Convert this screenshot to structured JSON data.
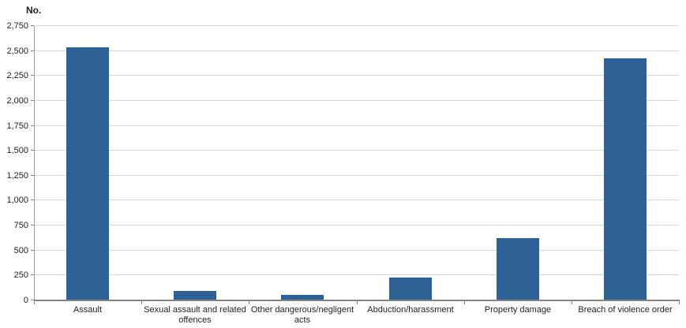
{
  "chart_data": {
    "type": "bar",
    "title": "",
    "ylabel": "No.",
    "xlabel": "",
    "categories": [
      "Assault",
      "Sexual assault and related offences",
      "Other dangerous/negligent acts",
      "Abduction/harassment",
      "Property damage",
      "Breach of violence order"
    ],
    "values": [
      2530,
      90,
      50,
      220,
      615,
      2420
    ],
    "ylim": [
      0,
      2750
    ],
    "ytick_step": 250,
    "ytick_labels": [
      "0",
      "250",
      "500",
      "750",
      "1,000",
      "1,250",
      "1,500",
      "1,750",
      "2,000",
      "2,250",
      "2,500",
      "2,750"
    ],
    "grid": true,
    "legend": false,
    "colors": {
      "bar": "#2E6296",
      "gridline": "#D9D9D9",
      "x_axis": "#848484",
      "y_axis": "#9B9B9B",
      "text": "#1F1F1F",
      "background": "#FFFFFF"
    }
  }
}
